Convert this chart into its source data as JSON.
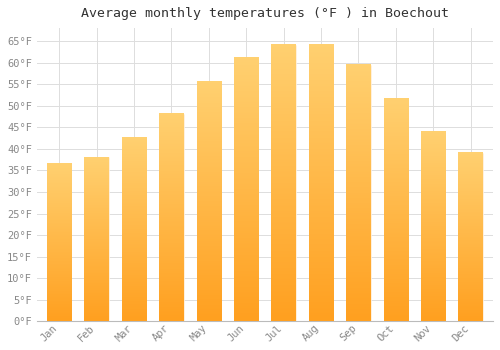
{
  "title": "Average monthly temperatures (°F ) in Boechout",
  "months": [
    "Jan",
    "Feb",
    "Mar",
    "Apr",
    "May",
    "Jun",
    "Jul",
    "Aug",
    "Sep",
    "Oct",
    "Nov",
    "Dec"
  ],
  "values": [
    36.5,
    38.0,
    42.5,
    48.0,
    55.5,
    61.0,
    64.0,
    64.0,
    59.5,
    51.5,
    44.0,
    39.0
  ],
  "bar_color_bottom": "#FFA020",
  "bar_color_top": "#FFD070",
  "background_color": "#FFFFFF",
  "grid_color": "#DDDDDD",
  "ylim": [
    0,
    68
  ],
  "yticks": [
    0,
    5,
    10,
    15,
    20,
    25,
    30,
    35,
    40,
    45,
    50,
    55,
    60,
    65
  ],
  "title_fontsize": 9.5,
  "tick_fontsize": 7.5,
  "font_family": "monospace",
  "tick_color": "#888888",
  "title_color": "#333333"
}
